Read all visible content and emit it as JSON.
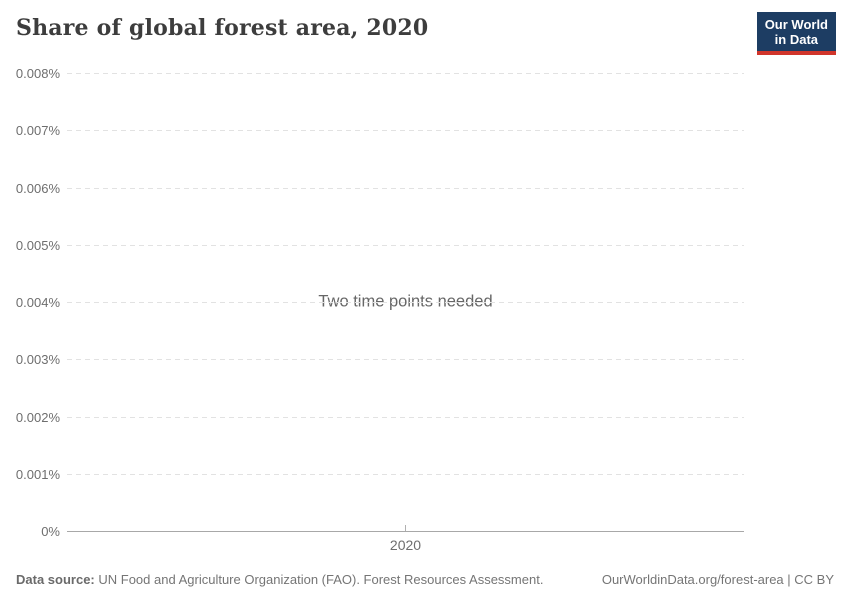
{
  "title": "Share of global forest area, 2020",
  "logo": {
    "line1": "Our World",
    "line2": "in Data",
    "background_color": "#1d3d63",
    "accent_color": "#d1352b"
  },
  "chart_data": {
    "type": "line",
    "title": "Share of global forest area, 2020",
    "series": [],
    "empty_message": "Two time points needed",
    "x_tick_labels": [
      "2020"
    ],
    "y_tick_labels_top_to_bottom": [
      "0.008%",
      "0.007%",
      "0.006%",
      "0.005%",
      "0.004%",
      "0.003%",
      "0.002%",
      "0.001%",
      "0%"
    ],
    "ylim": [
      0,
      0.008
    ],
    "y_unit": "%",
    "grid": "horizontal dashed",
    "legend": "none"
  },
  "footer": {
    "data_source_label": "Data source:",
    "data_source_value": "UN Food and Agriculture Organization (FAO). Forest Resources Assessment.",
    "attribution": "OurWorldinData.org/forest-area | CC BY"
  },
  "colors": {
    "title_text": "#3d3d3d",
    "axis_label_text": "#6e6e6e",
    "gridline": "#e2e2e2",
    "axis_line": "#a8a8a8",
    "empty_message_text": "#666666",
    "footer_text": "#757575"
  }
}
